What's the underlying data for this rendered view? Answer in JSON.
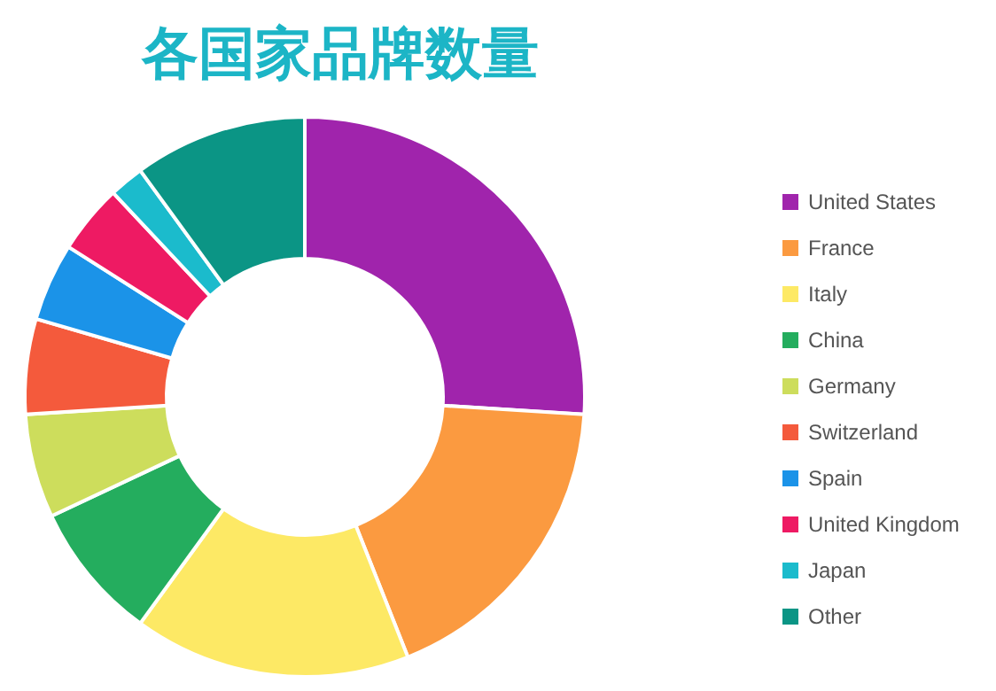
{
  "chart_data": {
    "type": "donut",
    "title": "各国家品牌数量",
    "categories": [
      "United States",
      "France",
      "Italy",
      "China",
      "Germany",
      "Switzerland",
      "Spain",
      "United Kingdom",
      "Japan",
      "Other"
    ],
    "values": [
      26,
      18,
      16,
      8,
      6,
      5.5,
      4.5,
      4,
      2,
      10
    ],
    "colors": [
      "#a024ac",
      "#fb9a40",
      "#fde965",
      "#24ad5e",
      "#cddd5c",
      "#f45a3c",
      "#1b93e8",
      "#ee1a63",
      "#1bbbcc",
      "#0b9585"
    ],
    "legend": "right"
  }
}
